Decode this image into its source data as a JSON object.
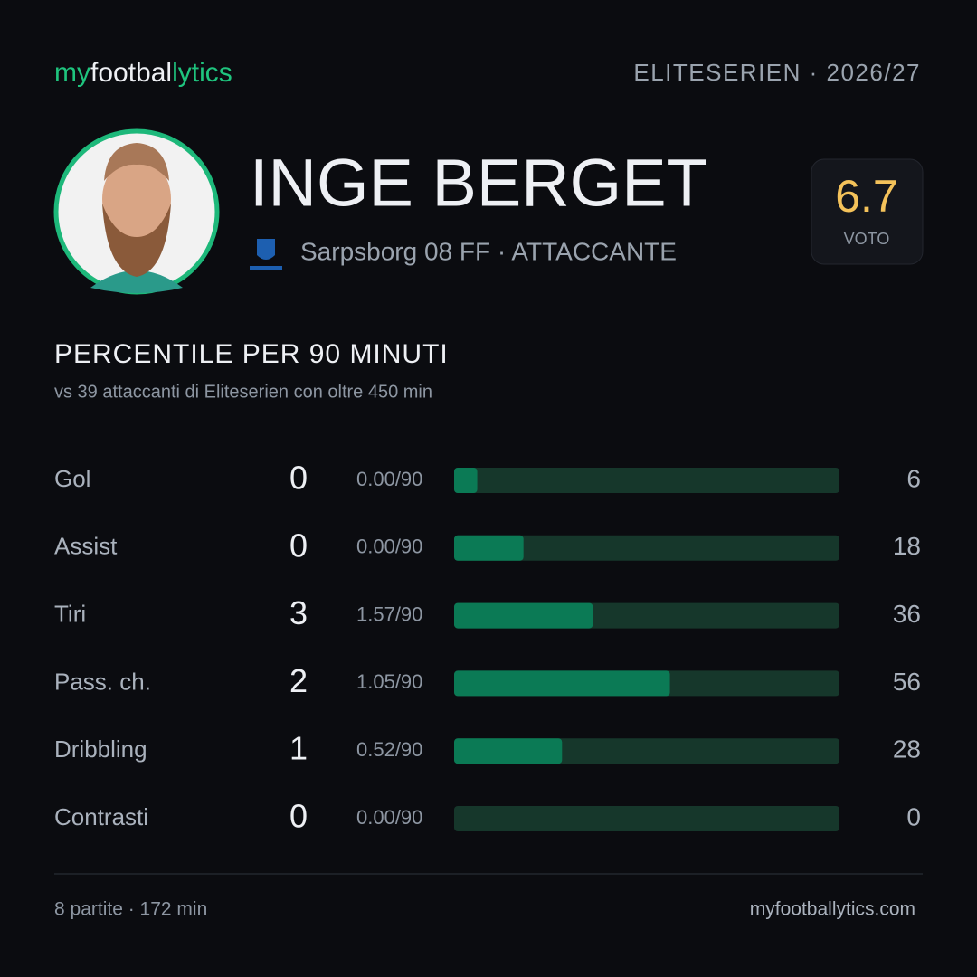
{
  "brand": {
    "parts": [
      "my",
      "footbal",
      "lytics"
    ]
  },
  "header": {
    "league": "ELITESERIEN · 2026/27"
  },
  "player": {
    "name": "INGE BERGET",
    "team": "Sarpsborg 08 FF · ATTACCANTE"
  },
  "rating": {
    "value": 6.7,
    "label": "VOTO"
  },
  "section": {
    "title": "PERCENTILE PER 90 MINUTI",
    "subtitle": "vs 39 attaccanti di Eliteserien con oltre 450 min"
  },
  "percentile": {
    "xlim": [
      0,
      100
    ],
    "rows": [
      {
        "label": "Gol",
        "total": 0,
        "per90": "0.00/90",
        "value": 6
      },
      {
        "label": "Assist",
        "total": 0,
        "per90": "0.00/90",
        "value": 18
      },
      {
        "label": "Tiri",
        "total": 3,
        "per90": "1.57/90",
        "value": 36
      },
      {
        "label": "Pass. ch.",
        "total": 2,
        "per90": "1.05/90",
        "value": 56
      },
      {
        "label": "Dribbling",
        "total": 1,
        "per90": "0.52/90",
        "value": 28
      },
      {
        "label": "Contrasti",
        "total": 0,
        "per90": "0.00/90",
        "value": 0
      }
    ]
  },
  "footer": {
    "left": "8 partite · 172 min",
    "right": "myfootballytics.com"
  }
}
